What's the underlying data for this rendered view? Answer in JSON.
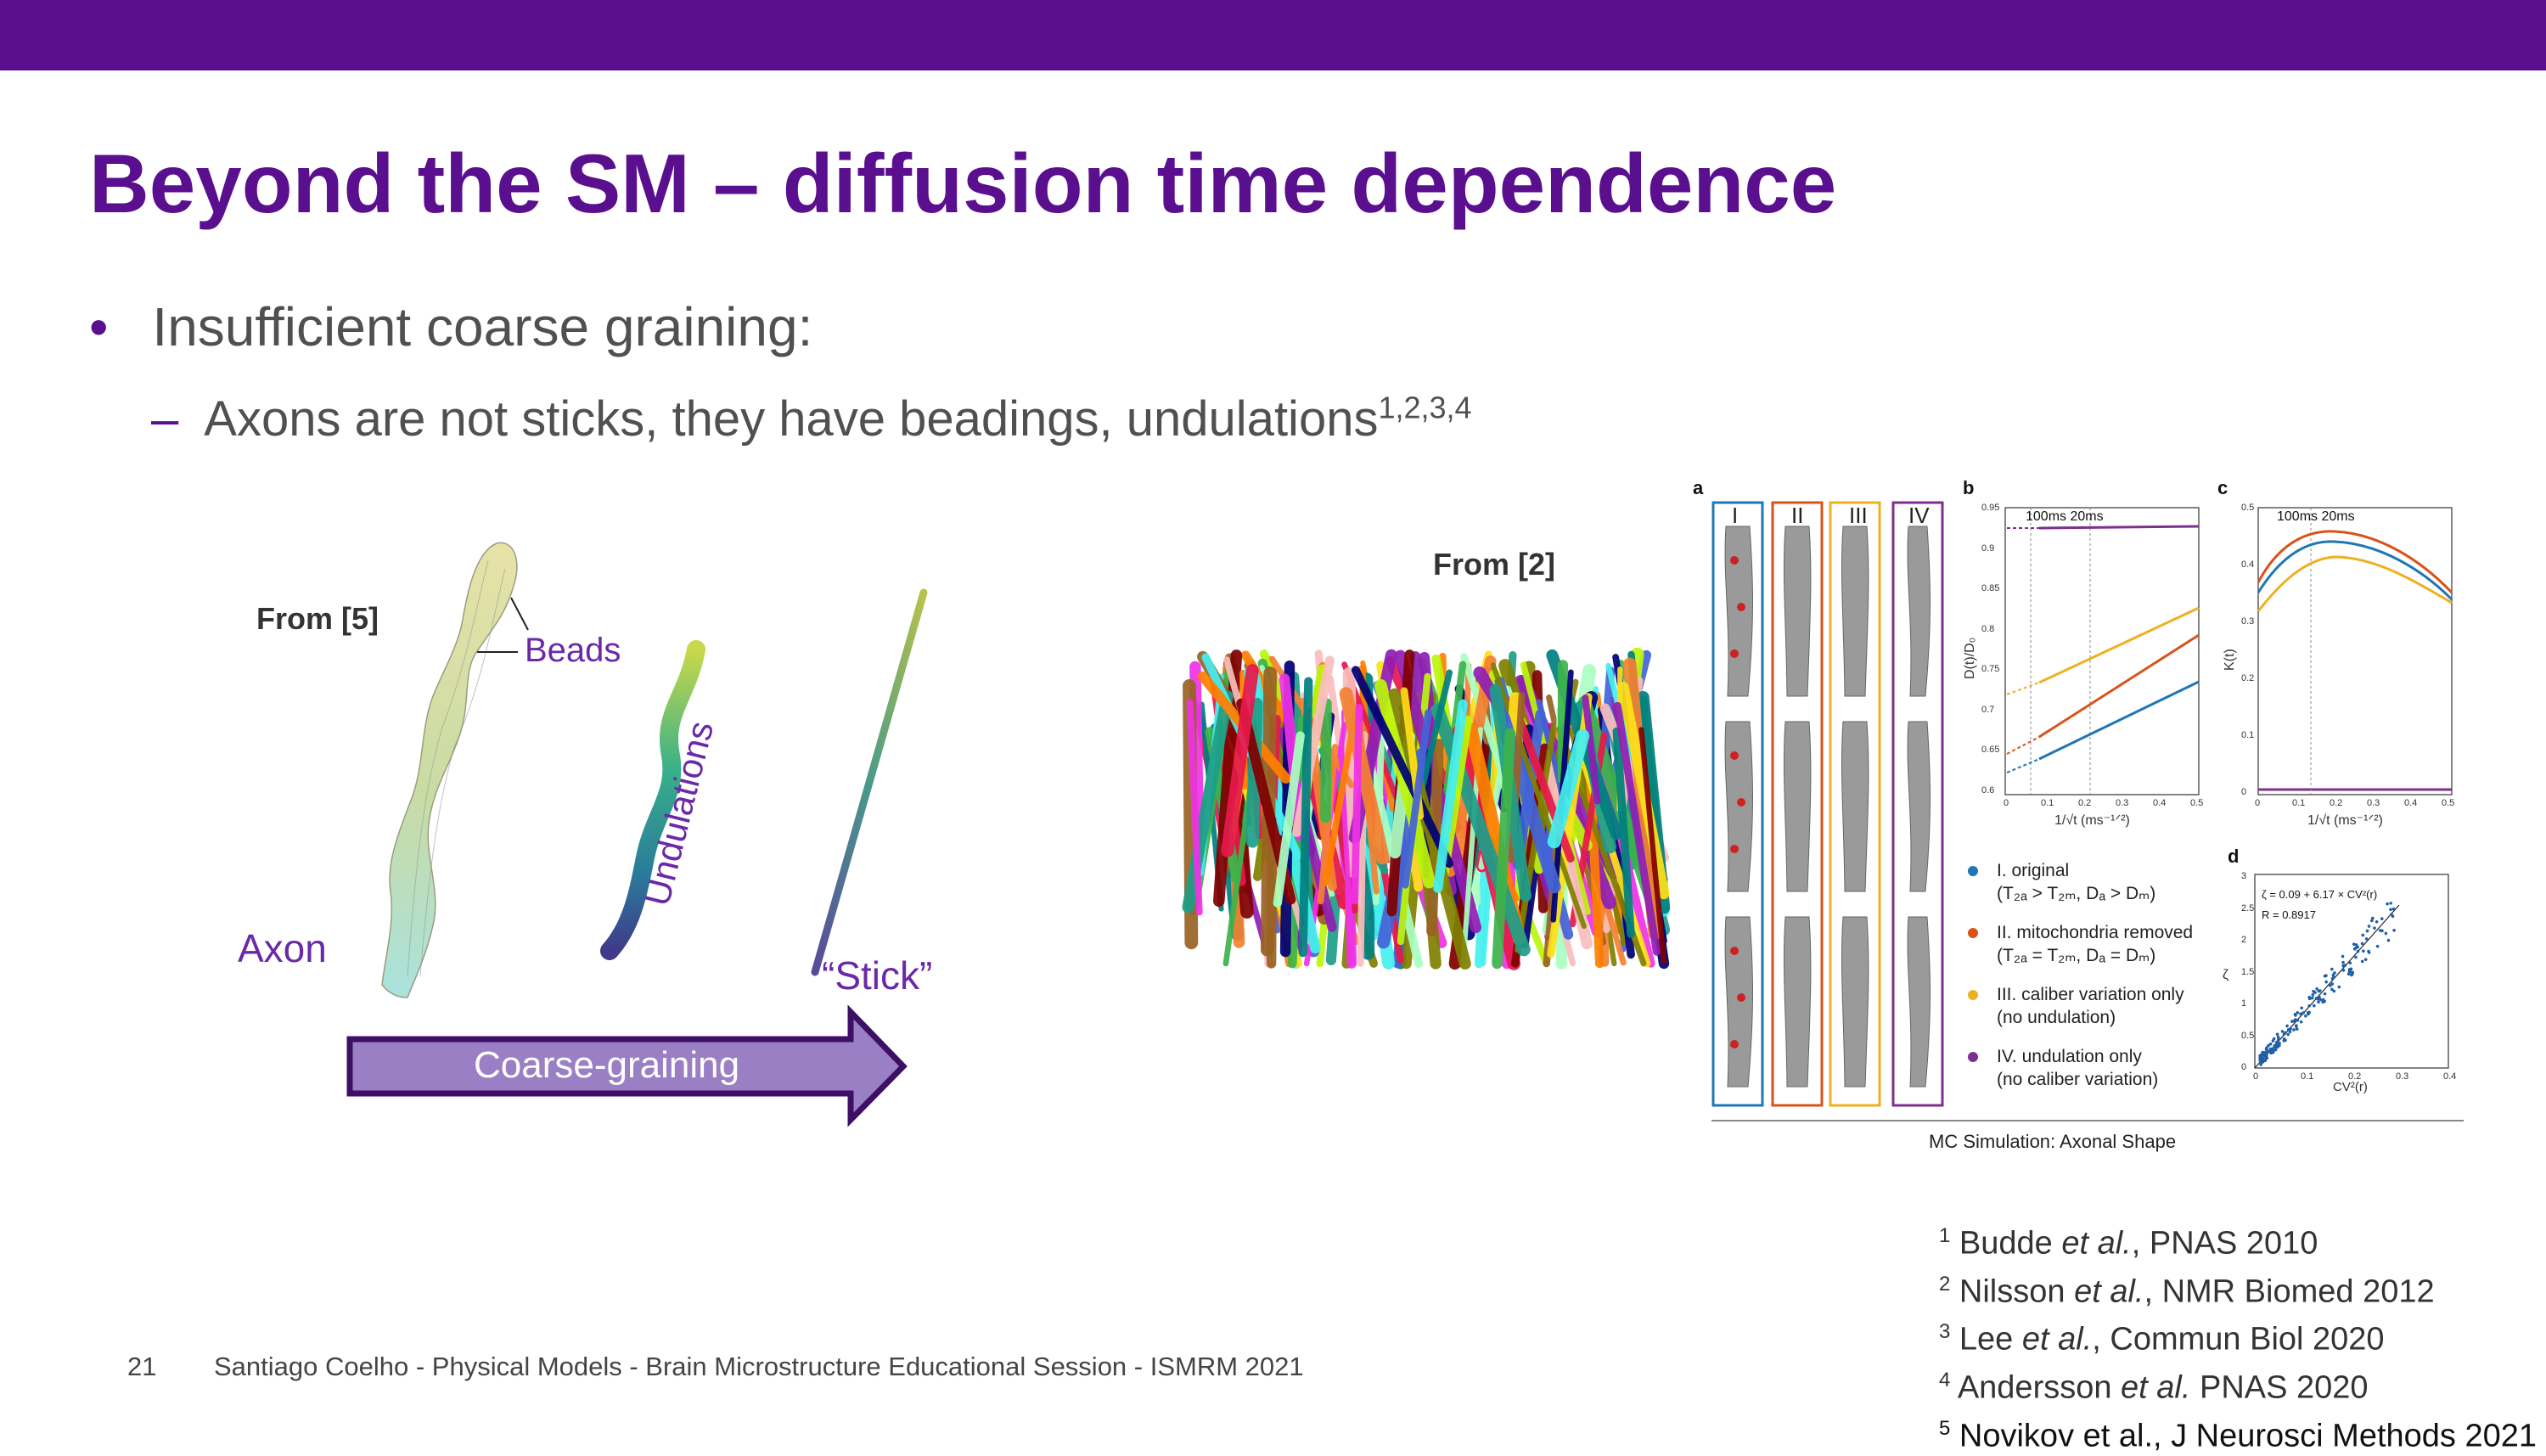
{
  "slide": {
    "title": "Beyond the SM – diffusion time dependence",
    "bullet1": "Insufficient coarse graining:",
    "bullet1_marker": "•",
    "bullet2": "Axons are not sticks, they have beadings, undulations",
    "bullet2_marker": "–",
    "bullet2_sup": "1,2,3,4"
  },
  "left_figure": {
    "from_label": "From [5]",
    "beads_label": "Beads",
    "undulations_label": "Undulations",
    "axon_label": "Axon",
    "stick_label": "“Stick”",
    "arrow_label": "Coarse-graining"
  },
  "middle_figure": {
    "from_label": "From [2]"
  },
  "right_figure": {
    "panel_a": "a",
    "panel_b": "b",
    "panel_c": "c",
    "panel_d": "d",
    "columns": [
      "I",
      "II",
      "III",
      "IV"
    ],
    "column_colors": [
      "#1f77b4",
      "#d95319",
      "#edb120",
      "#7e2f8e"
    ],
    "b_annotation": "100ms  20ms",
    "c_annotation": "100ms  20ms",
    "b_ylabel": "D(t)/D₀",
    "c_ylabel": "K(t)",
    "b_xlabel": "1/√t  (ms⁻¹ᐟ²)",
    "c_xlabel": "1/√t  (ms⁻¹ᐟ²)",
    "b_yticks": [
      "0.95",
      "0.9",
      "0.85",
      "0.8",
      "0.75",
      "0.7",
      "0.65",
      "0.6"
    ],
    "c_yticks": [
      "0.5",
      "0.4",
      "0.3",
      "0.2",
      "0.1",
      "0"
    ],
    "xticks": [
      "0",
      "0.1",
      "0.2",
      "0.3",
      "0.4",
      "0.5"
    ],
    "d_formula": "ζ = 0.09 + 6.17 × CV²(r)",
    "d_r": "R = 0.8917",
    "d_xlabel": "CV²(r)",
    "d_ylabel": "ζ",
    "d_yticks": [
      "3",
      "2.5",
      "2",
      "1.5",
      "1",
      "0.5",
      "0"
    ],
    "d_xticks": [
      "0",
      "0.1",
      "0.2",
      "0.3",
      "0.4"
    ],
    "legend": [
      {
        "line1": "I. original",
        "line2": "(T₂ₐ > T₂ₘ, Dₐ > Dₘ)",
        "color": "#1f77b4"
      },
      {
        "line1": "II. mitochondria removed",
        "line2": "(T₂ₐ = T₂ₘ, Dₐ = Dₘ)",
        "color": "#d95319"
      },
      {
        "line1": "III. caliber variation only",
        "line2": "(no undulation)",
        "color": "#edb120"
      },
      {
        "line1": "IV. undulation only",
        "line2": "(no caliber variation)",
        "color": "#7e2f8e"
      }
    ],
    "caption": "MC Simulation: Axonal Shape"
  },
  "footer": {
    "page_number": "21",
    "text": "Santiago Coelho - Physical Models - Brain Microstructure Educational Session - ISMRM 2021"
  },
  "references": [
    {
      "num": "1",
      "pre": "Budde ",
      "etal": "et al.",
      "post": ", PNAS 2010"
    },
    {
      "num": "2",
      "pre": "Nilsson ",
      "etal": "et al.",
      "post": ", NMR Biomed 2012"
    },
    {
      "num": "3",
      "pre": "Lee ",
      "etal": "et al.",
      "post": ", Commun Biol 2020"
    },
    {
      "num": "4",
      "pre": "Andersson ",
      "etal": "et al.",
      "post": " PNAS 2020"
    },
    {
      "num": "5",
      "pre": "Novikov et al., J Neurosci Methods 2021",
      "etal": "",
      "post": ""
    }
  ]
}
